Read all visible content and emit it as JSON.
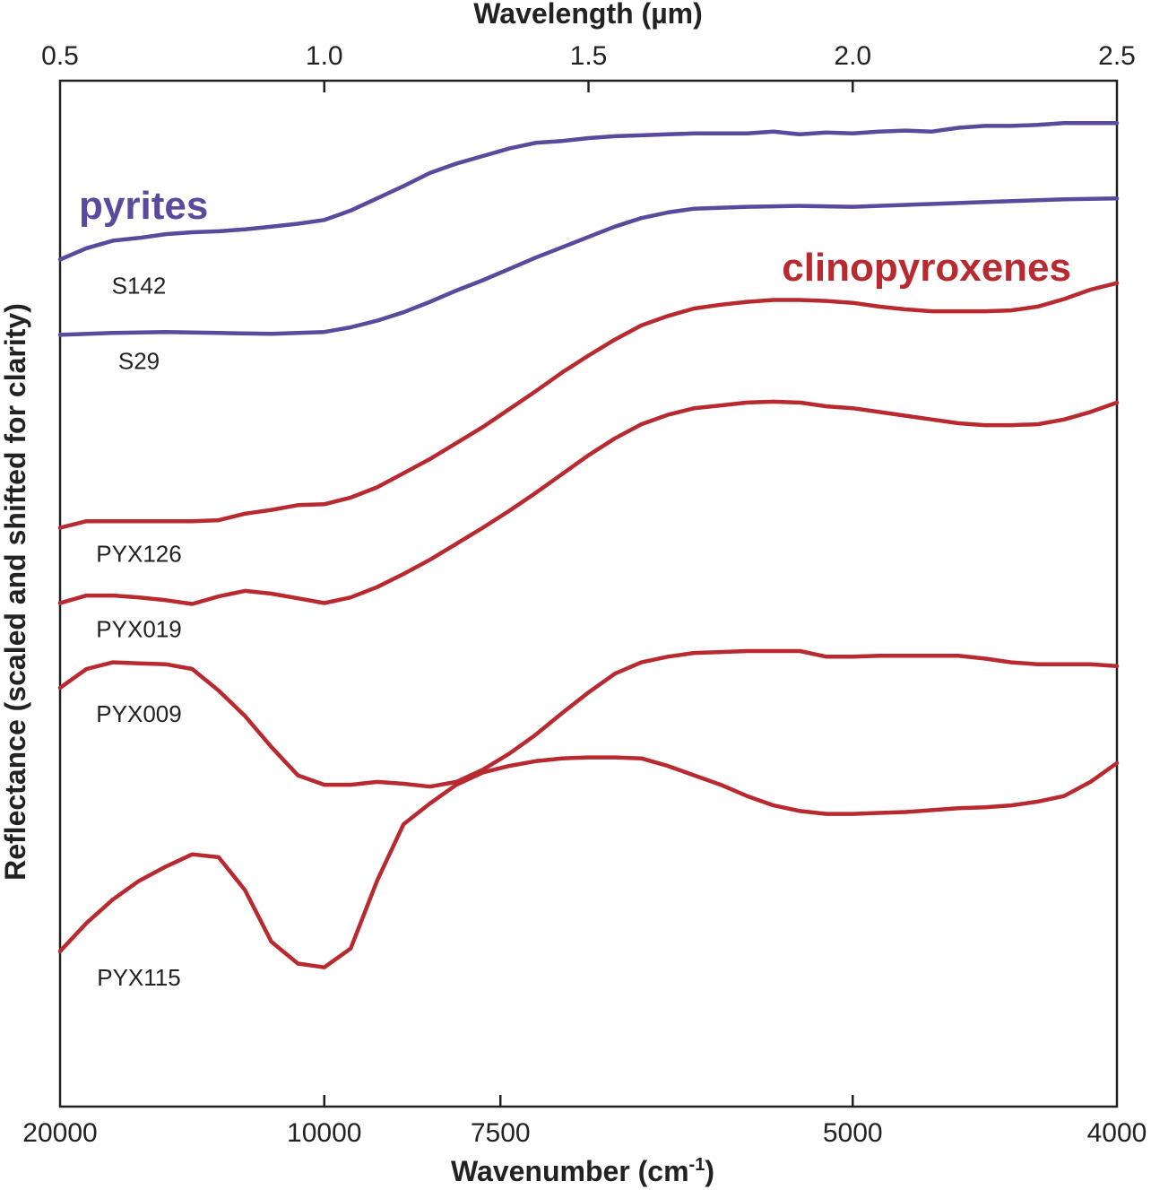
{
  "chart_data": {
    "type": "line",
    "title": "",
    "xlabel_top": "Wavelength (µm)",
    "xlabel_bottom": "Wavenumber (cm",
    "xlabel_bottom_sup": "-1",
    "xlabel_bottom_close": ")",
    "ylabel": "Reflectance (scaled and shifted for clarity)",
    "xlim_um": [
      0.5,
      2.5
    ],
    "top_ticks": [
      "0.5",
      "1.0",
      "1.5",
      "2.0",
      "2.5"
    ],
    "bottom_ticks": [
      "20000",
      "10000",
      "7500",
      "5000",
      "4000"
    ],
    "bottom_tick_values_um": [
      0.5,
      1.0,
      1.3333,
      2.0,
      2.5
    ],
    "y_ticks_shown": false,
    "grid": false,
    "groups": [
      {
        "label": "pyrites",
        "color": "#5a4a9e"
      },
      {
        "label": "clinopyroxenes",
        "color": "#b82a30"
      }
    ],
    "series": [
      {
        "name": "S142",
        "group": "pyrites",
        "color": "#5a4a9e",
        "x": [
          0.5,
          0.55,
          0.6,
          0.65,
          0.7,
          0.75,
          0.8,
          0.85,
          0.9,
          0.95,
          1.0,
          1.05,
          1.1,
          1.15,
          1.2,
          1.25,
          1.3,
          1.35,
          1.4,
          1.45,
          1.5,
          1.55,
          1.6,
          1.65,
          1.7,
          1.75,
          1.8,
          1.85,
          1.9,
          1.95,
          2.0,
          2.05,
          2.1,
          2.15,
          2.2,
          2.25,
          2.3,
          2.35,
          2.4,
          2.45,
          2.5
        ],
        "y": [
          0.08,
          0.092,
          0.1,
          0.103,
          0.107,
          0.109,
          0.11,
          0.112,
          0.115,
          0.118,
          0.122,
          0.132,
          0.145,
          0.158,
          0.172,
          0.182,
          0.19,
          0.198,
          0.204,
          0.206,
          0.209,
          0.211,
          0.212,
          0.213,
          0.214,
          0.214,
          0.214,
          0.216,
          0.213,
          0.215,
          0.214,
          0.216,
          0.217,
          0.216,
          0.22,
          0.222,
          0.222,
          0.223,
          0.225,
          0.225,
          0.225
        ]
      },
      {
        "name": "S29",
        "group": "pyrites",
        "color": "#5a4a9e",
        "x": [
          0.5,
          0.6,
          0.7,
          0.8,
          0.9,
          1.0,
          1.05,
          1.1,
          1.15,
          1.2,
          1.25,
          1.3,
          1.35,
          1.4,
          1.45,
          1.5,
          1.55,
          1.6,
          1.65,
          1.7,
          1.8,
          1.9,
          2.0,
          2.1,
          2.2,
          2.3,
          2.4,
          2.5
        ],
        "y": [
          0.0,
          0.002,
          0.003,
          0.002,
          0.001,
          0.003,
          0.008,
          0.015,
          0.024,
          0.035,
          0.047,
          0.058,
          0.07,
          0.082,
          0.093,
          0.104,
          0.115,
          0.124,
          0.13,
          0.134,
          0.136,
          0.137,
          0.136,
          0.138,
          0.14,
          0.142,
          0.144,
          0.145
        ]
      },
      {
        "name": "PYX126",
        "group": "clinopyroxenes",
        "color": "#b82a30",
        "x": [
          0.5,
          0.55,
          0.6,
          0.65,
          0.7,
          0.75,
          0.8,
          0.85,
          0.9,
          0.95,
          1.0,
          1.05,
          1.1,
          1.15,
          1.2,
          1.25,
          1.3,
          1.35,
          1.4,
          1.45,
          1.5,
          1.55,
          1.6,
          1.65,
          1.7,
          1.75,
          1.8,
          1.85,
          1.9,
          1.95,
          2.0,
          2.05,
          2.1,
          2.15,
          2.2,
          2.25,
          2.3,
          2.35,
          2.4,
          2.45,
          2.5
        ],
        "y": [
          -0.205,
          -0.198,
          -0.198,
          -0.198,
          -0.198,
          -0.198,
          -0.197,
          -0.19,
          -0.186,
          -0.181,
          -0.18,
          -0.173,
          -0.162,
          -0.147,
          -0.132,
          -0.115,
          -0.098,
          -0.079,
          -0.06,
          -0.04,
          -0.022,
          -0.005,
          0.01,
          0.02,
          0.028,
          0.032,
          0.035,
          0.037,
          0.037,
          0.036,
          0.034,
          0.03,
          0.027,
          0.025,
          0.025,
          0.025,
          0.026,
          0.03,
          0.038,
          0.048,
          0.055
        ]
      },
      {
        "name": "PYX019",
        "group": "clinopyroxenes",
        "color": "#b82a30",
        "x": [
          0.5,
          0.55,
          0.6,
          0.65,
          0.7,
          0.75,
          0.8,
          0.85,
          0.9,
          0.95,
          1.0,
          1.05,
          1.1,
          1.15,
          1.2,
          1.25,
          1.3,
          1.35,
          1.4,
          1.45,
          1.5,
          1.55,
          1.6,
          1.65,
          1.7,
          1.75,
          1.8,
          1.85,
          1.9,
          1.95,
          2.0,
          2.05,
          2.1,
          2.15,
          2.2,
          2.25,
          2.3,
          2.35,
          2.4,
          2.45,
          2.5
        ],
        "y": [
          -0.285,
          -0.277,
          -0.277,
          -0.279,
          -0.282,
          -0.286,
          -0.278,
          -0.272,
          -0.275,
          -0.28,
          -0.285,
          -0.279,
          -0.268,
          -0.254,
          -0.239,
          -0.222,
          -0.205,
          -0.187,
          -0.168,
          -0.148,
          -0.128,
          -0.11,
          -0.095,
          -0.085,
          -0.078,
          -0.075,
          -0.072,
          -0.071,
          -0.072,
          -0.076,
          -0.078,
          -0.082,
          -0.086,
          -0.09,
          -0.094,
          -0.096,
          -0.096,
          -0.095,
          -0.09,
          -0.082,
          -0.072
        ]
      },
      {
        "name": "PYX009",
        "group": "clinopyroxenes",
        "color": "#b82a30",
        "x": [
          0.5,
          0.55,
          0.6,
          0.65,
          0.7,
          0.75,
          0.8,
          0.85,
          0.9,
          0.95,
          1.0,
          1.05,
          1.1,
          1.15,
          1.2,
          1.25,
          1.3,
          1.35,
          1.4,
          1.45,
          1.5,
          1.55,
          1.6,
          1.65,
          1.7,
          1.75,
          1.8,
          1.85,
          1.9,
          1.95,
          2.0,
          2.05,
          2.1,
          2.15,
          2.2,
          2.25,
          2.3,
          2.35,
          2.4,
          2.45,
          2.5
        ],
        "y": [
          -0.375,
          -0.355,
          -0.348,
          -0.349,
          -0.35,
          -0.355,
          -0.378,
          -0.405,
          -0.438,
          -0.468,
          -0.478,
          -0.478,
          -0.475,
          -0.477,
          -0.48,
          -0.475,
          -0.462,
          -0.445,
          -0.425,
          -0.402,
          -0.38,
          -0.36,
          -0.348,
          -0.342,
          -0.338,
          -0.337,
          -0.336,
          -0.336,
          -0.336,
          -0.342,
          -0.342,
          -0.341,
          -0.341,
          -0.341,
          -0.341,
          -0.344,
          -0.348,
          -0.35,
          -0.35,
          -0.35,
          -0.352
        ]
      },
      {
        "name": "PYX115",
        "group": "clinopyroxenes",
        "color": "#b82a30",
        "x": [
          0.5,
          0.55,
          0.6,
          0.65,
          0.7,
          0.75,
          0.8,
          0.85,
          0.9,
          0.95,
          1.0,
          1.05,
          1.1,
          1.15,
          1.2,
          1.25,
          1.3,
          1.35,
          1.4,
          1.45,
          1.5,
          1.55,
          1.6,
          1.65,
          1.7,
          1.75,
          1.8,
          1.85,
          1.9,
          1.95,
          2.0,
          2.05,
          2.1,
          2.15,
          2.2,
          2.25,
          2.3,
          2.35,
          2.4,
          2.45,
          2.5
        ],
        "y": [
          -0.655,
          -0.625,
          -0.6,
          -0.58,
          -0.565,
          -0.552,
          -0.555,
          -0.59,
          -0.645,
          -0.668,
          -0.672,
          -0.652,
          -0.58,
          -0.52,
          -0.498,
          -0.478,
          -0.465,
          -0.458,
          -0.453,
          -0.45,
          -0.449,
          -0.449,
          -0.45,
          -0.458,
          -0.468,
          -0.478,
          -0.49,
          -0.5,
          -0.506,
          -0.509,
          -0.509,
          -0.508,
          -0.507,
          -0.505,
          -0.503,
          -0.502,
          -0.5,
          -0.496,
          -0.49,
          -0.475,
          -0.455
        ]
      }
    ]
  }
}
